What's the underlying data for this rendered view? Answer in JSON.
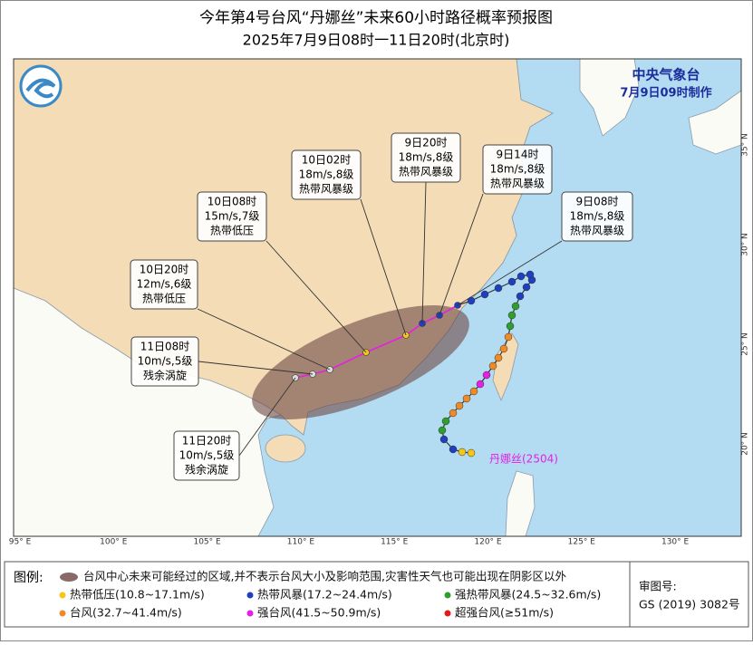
{
  "title": "今年第4号台风“丹娜丝”未来60小时路径概率预报图",
  "subtitle": "2025年7月9日08时一11日20时(北京时)",
  "issuer": {
    "name": "中央气象台",
    "time": "7月9日09时制作"
  },
  "lon_labels": [
    "95° E",
    "100° E",
    "105° E",
    "110° E",
    "115° E",
    "120° E",
    "125° E",
    "130° E"
  ],
  "lat_labels": [
    "20° N",
    "25° N",
    "30° N",
    "35° N"
  ],
  "typhoon_name": "丹娜丝(2504)",
  "forecast_points": [
    {
      "time": "9日08时",
      "wind": "18m/s,8级",
      "level": "热带风暴级"
    },
    {
      "time": "9日14时",
      "wind": "18m/s,8级",
      "level": "热带风暴级"
    },
    {
      "time": "9日20时",
      "wind": "18m/s,8级",
      "level": "热带风暴级"
    },
    {
      "time": "10日02时",
      "wind": "18m/s,8级",
      "level": "热带风暴级"
    },
    {
      "time": "10日08时",
      "wind": "15m/s,7级",
      "level": "热带低压"
    },
    {
      "time": "10日20时",
      "wind": "12m/s,6级",
      "level": "热带低压"
    },
    {
      "time": "11日08时",
      "wind": "10m/s,5级",
      "level": "残余涡旋"
    },
    {
      "time": "11日20时",
      "wind": "10m/s,5级",
      "level": "残余涡旋"
    }
  ],
  "legend": {
    "title": "图例:",
    "area": "台风中心未来可能经过的区域,并不表示台风大小及影响范围,灾害性天气也可能出现在阴影区以外",
    "items": [
      {
        "label": "热带低压(10.8~17.1m/s)",
        "color": "#f5c518"
      },
      {
        "label": "热带风暴(17.2~24.4m/s)",
        "color": "#1f3fbf"
      },
      {
        "label": "强热带风暴(24.5~32.6m/s)",
        "color": "#2e9e2e"
      },
      {
        "label": "台风(32.7~41.4m/s)",
        "color": "#f08a24"
      },
      {
        "label": "强台风(41.5~50.9m/s)",
        "color": "#e61ee6"
      },
      {
        "label": "超强台风(≥51m/s)",
        "color": "#e21b1b"
      }
    ]
  },
  "approval": {
    "label": "审图号:",
    "number": "GS (2019) 3082号"
  }
}
